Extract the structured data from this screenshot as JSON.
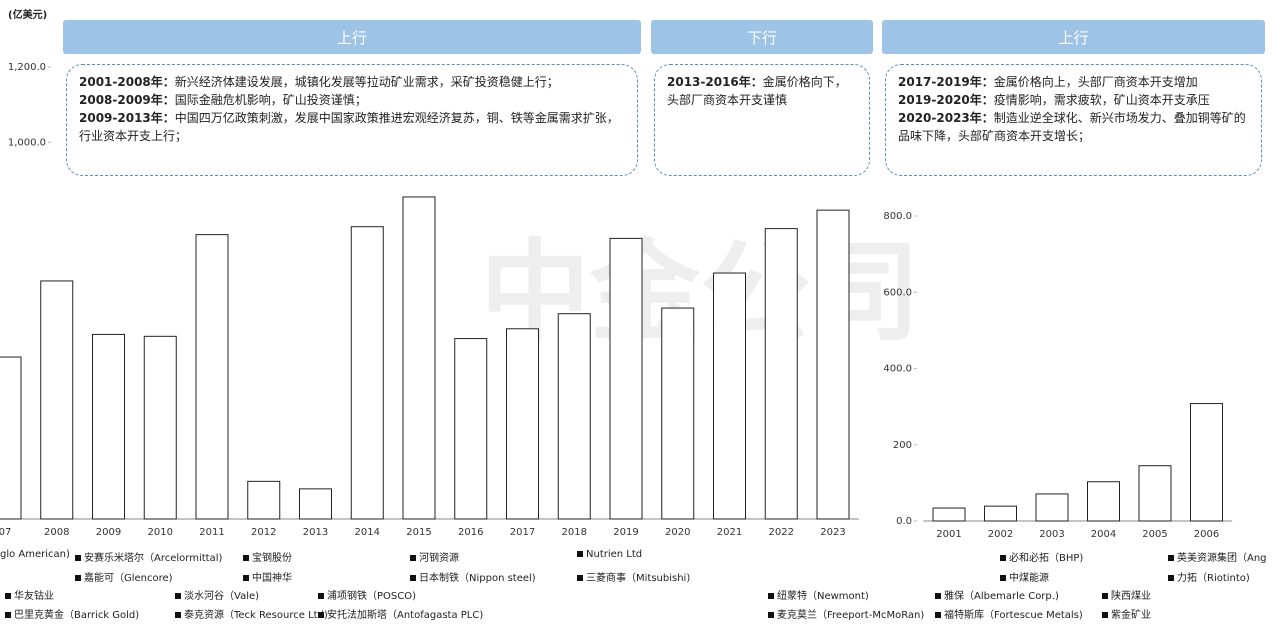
{
  "chart_data": [
    {
      "type": "bar",
      "unit_label": "(亿美元)",
      "watermark": "中金公司",
      "phases": [
        {
          "label": "上行",
          "notes": [
            {
              "period": "2001-2008年：",
              "text": "新兴经济体建设发展，城镇化发展等拉动矿业需求，采矿投资稳健上行；"
            },
            {
              "period": "2008-2009年：",
              "text": "国际金融危机影响，矿山投资谨慎；"
            },
            {
              "period": "2009-2013年：",
              "text": "中国四万亿政策刺激，发展中国家政策推进宏观经济复苏，铜、铁等金属需求扩张，行业资本开支上行；"
            }
          ]
        },
        {
          "label": "下行",
          "notes": [
            {
              "period": "2013-2016年：",
              "text": "金属价格向下，头部厂商资本开支谨慎"
            }
          ]
        },
        {
          "label": "上行",
          "notes": [
            {
              "period": "2017-2019年：",
              "text": "金属价格向上，头部厂商资本开支增加"
            },
            {
              "period": "2019-2020年：",
              "text": "疫情影响，需求疲软，矿山资本开支承压"
            },
            {
              "period": "2020-2023年：",
              "text": "制造业逆全球化、新兴市场发力、叠加铜等矿的品味下降，头部矿商资本开支增长；"
            }
          ]
        }
      ],
      "categories": [
        "07",
        "2008",
        "2009",
        "2010",
        "2011",
        "2012",
        "2013",
        "2014",
        "2015",
        "2016",
        "2017",
        "2018",
        "2019",
        "2020",
        "2021",
        "2022",
        "2023"
      ],
      "values": [
        430,
        632,
        490,
        485,
        755,
        100,
        80,
        776,
        855,
        479,
        505,
        545,
        745,
        560,
        653,
        771,
        820
      ],
      "color": "#ffffff",
      "ylim": [
        0,
        1200
      ],
      "yticks": [
        {
          "value": 1000,
          "label": "1,000.0"
        },
        {
          "value": 1200,
          "label": "1,200.0"
        }
      ],
      "legend": [
        [
          "glo American)",
          "安赛乐米塔尔（Arcelormittal)",
          "宝钢股份",
          "河钢资源",
          "Nutrien Ltd",
          "必和必拓（BHP)",
          "英美资源集团（Ang"
        ],
        [
          "嘉能可（Glencore)",
          "中国神华",
          "日本制铁（Nippon steel)",
          "三菱商事（Mitsubishi)",
          "中煤能源",
          "力拓（Riotinto)"
        ],
        [
          "华友钴业",
          "淡水河谷（Vale)",
          "浦项钢铁（POSCO)",
          "纽蒙特（Newmont)",
          "雅保（Albemarle Corp.)",
          "陕西煤业"
        ],
        [
          "巴里克黄金（Barrick Gold)",
          "泰克资源（Teck Resource Ltd)",
          "安托法加斯塔（Antofagasta PLC)",
          "麦克莫兰（Freeport-McMoRan)",
          "福特斯库（Fortescue Metals)",
          "紫金矿业"
        ]
      ]
    },
    {
      "type": "bar",
      "categories": [
        "2001",
        "2002",
        "2003",
        "2004",
        "2005",
        "2006"
      ],
      "values": [
        34,
        39,
        71,
        103,
        145,
        308
      ],
      "color": "#ffffff",
      "ylim": [
        0,
        800
      ],
      "yticks": [
        {
          "value": 0,
          "label": "0.0"
        },
        {
          "value": 200,
          "label": "200"
        },
        {
          "value": 400,
          "label": "400.0"
        },
        {
          "value": 600,
          "label": "600.0"
        },
        {
          "value": 800,
          "label": "800.0"
        }
      ]
    }
  ]
}
